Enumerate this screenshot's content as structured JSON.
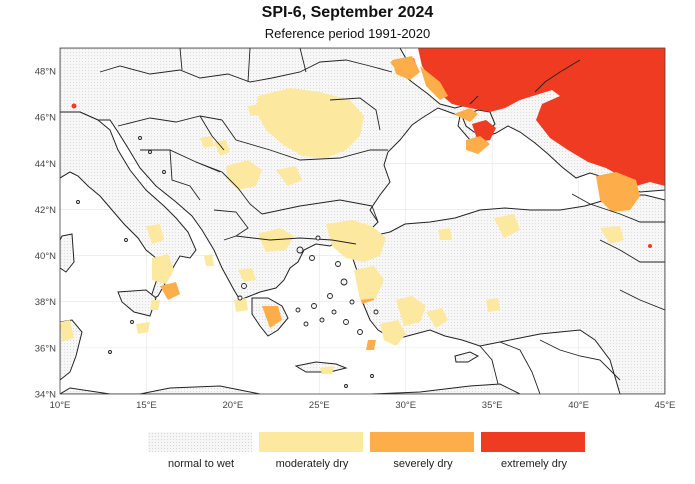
{
  "title": "SPI-6, September 2024",
  "subtitle": "Reference period 1991-2020",
  "map": {
    "lon_range": [
      10,
      45
    ],
    "lat_range": [
      34,
      49
    ],
    "lon_ticks": [
      "10°E",
      "15°E",
      "20°E",
      "25°E",
      "30°E",
      "35°E",
      "40°E",
      "45°E"
    ],
    "lat_ticks": [
      "34°N",
      "36°N",
      "38°N",
      "40°N",
      "42°N",
      "44°N",
      "46°N",
      "48°N"
    ],
    "gridlines": true,
    "sea_color": "#ffffff",
    "land_color": "#f7f7f7",
    "border_color": "#222222"
  },
  "legend": {
    "items": [
      {
        "label": "normal to wet",
        "color": "#f6f6f6"
      },
      {
        "label": "moderately dry",
        "color": "#fde8a0"
      },
      {
        "label": "severely dry",
        "color": "#fdae4b"
      },
      {
        "label": "extremely dry",
        "color": "#ef3b22"
      }
    ]
  }
}
